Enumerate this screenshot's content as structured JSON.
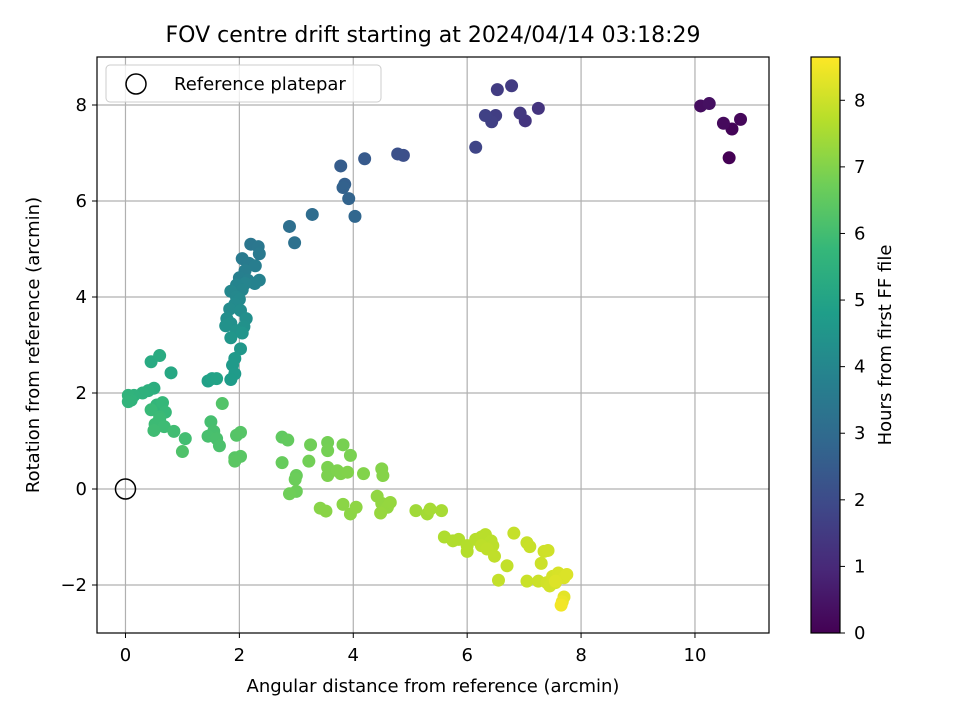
{
  "chart_data": {
    "type": "scatter",
    "title": "FOV centre drift starting at 2024/04/14 03:18:29",
    "xlabel": "Angular distance from reference (arcmin)",
    "ylabel": "Rotation from reference (arcmin)",
    "xlim": [
      -0.5,
      11.3
    ],
    "ylim": [
      -3.0,
      9.0
    ],
    "xticks": [
      0,
      2,
      4,
      6,
      8,
      10
    ],
    "yticks": [
      -2,
      0,
      2,
      4,
      6,
      8
    ],
    "xtick_labels": [
      "0",
      "2",
      "4",
      "6",
      "8",
      "10"
    ],
    "ytick_labels": [
      "−2",
      "0",
      "2",
      "4",
      "6",
      "8"
    ],
    "grid": true,
    "legend": {
      "placement": "top-left",
      "entries": [
        "Reference platepar"
      ]
    },
    "reference_point": {
      "x": 0,
      "y": 0,
      "label": "Reference platepar"
    },
    "colorbar": {
      "label": "Hours from first FF file",
      "range": [
        0,
        8.65
      ],
      "ticks": [
        0,
        1,
        2,
        3,
        4,
        5,
        6,
        7,
        8
      ],
      "tick_labels": [
        "0",
        "1",
        "2",
        "3",
        "4",
        "5",
        "6",
        "7",
        "8"
      ],
      "colormap": "viridis",
      "stops": [
        "#440154",
        "#482878",
        "#3e4989",
        "#31688e",
        "#26828e",
        "#1f9e89",
        "#35b779",
        "#6ece58",
        "#b5de2b",
        "#fde725"
      ]
    },
    "series": [
      {
        "points": [
          [
            10.6,
            6.9,
            0.0
          ],
          [
            10.65,
            7.5,
            0.08
          ],
          [
            10.8,
            7.7,
            0.15
          ],
          [
            10.5,
            7.62,
            0.22
          ],
          [
            10.1,
            7.98,
            0.3
          ],
          [
            10.25,
            8.03,
            0.36
          ],
          [
            7.25,
            7.93,
            1.3
          ],
          [
            7.02,
            7.67,
            1.35
          ],
          [
            6.93,
            7.83,
            1.42
          ],
          [
            6.78,
            8.4,
            1.5
          ],
          [
            6.53,
            8.32,
            1.55
          ],
          [
            6.5,
            7.78,
            1.6
          ],
          [
            6.43,
            7.65,
            1.65
          ],
          [
            6.32,
            7.78,
            1.7
          ],
          [
            6.15,
            7.12,
            1.82
          ],
          [
            4.88,
            6.95,
            2.1
          ],
          [
            4.78,
            6.98,
            2.15
          ],
          [
            4.2,
            6.88,
            2.45
          ],
          [
            3.78,
            6.73,
            2.55
          ],
          [
            3.85,
            6.35,
            2.65
          ],
          [
            3.82,
            6.28,
            2.7
          ],
          [
            3.92,
            6.05,
            2.75
          ],
          [
            4.03,
            5.68,
            2.85
          ],
          [
            3.28,
            5.72,
            3.05
          ],
          [
            2.88,
            5.47,
            3.15
          ],
          [
            2.97,
            5.13,
            3.2
          ],
          [
            2.2,
            5.1,
            3.4
          ],
          [
            2.33,
            5.05,
            3.45
          ],
          [
            2.35,
            4.9,
            3.5
          ],
          [
            2.05,
            4.8,
            3.55
          ],
          [
            2.17,
            4.7,
            3.6
          ],
          [
            2.28,
            4.65,
            3.65
          ],
          [
            2.1,
            4.55,
            3.7
          ],
          [
            2.0,
            4.4,
            3.75
          ],
          [
            2.15,
            4.35,
            3.78
          ],
          [
            2.35,
            4.35,
            3.82
          ],
          [
            2.27,
            4.28,
            3.86
          ],
          [
            2.1,
            4.28,
            3.9
          ],
          [
            1.95,
            4.25,
            3.93
          ],
          [
            2.05,
            4.15,
            3.96
          ],
          [
            1.85,
            4.12,
            4.0
          ],
          [
            1.95,
            4.0,
            4.05
          ],
          [
            2.0,
            3.95,
            4.08
          ],
          [
            1.92,
            3.85,
            4.12
          ],
          [
            1.83,
            3.75,
            4.16
          ],
          [
            2.02,
            3.72,
            4.2
          ],
          [
            1.78,
            3.55,
            4.25
          ],
          [
            2.12,
            3.55,
            4.28
          ],
          [
            1.85,
            3.45,
            4.32
          ],
          [
            2.08,
            3.38,
            4.36
          ],
          [
            1.76,
            3.4,
            4.4
          ],
          [
            1.95,
            3.3,
            4.44
          ],
          [
            2.05,
            3.25,
            4.48
          ],
          [
            1.85,
            3.15,
            4.52
          ],
          [
            2.02,
            2.92,
            4.58
          ],
          [
            1.92,
            2.72,
            4.62
          ],
          [
            1.88,
            2.58,
            4.66
          ],
          [
            1.92,
            2.4,
            4.7
          ],
          [
            1.85,
            2.28,
            4.74
          ],
          [
            1.45,
            2.25,
            4.9
          ],
          [
            1.52,
            2.3,
            4.95
          ],
          [
            1.6,
            2.3,
            5.0
          ],
          [
            0.8,
            2.42,
            5.15
          ],
          [
            0.45,
            2.65,
            5.25
          ],
          [
            0.6,
            2.78,
            5.3
          ],
          [
            0.5,
            2.1,
            5.4
          ],
          [
            0.4,
            2.05,
            5.45
          ],
          [
            0.3,
            2.0,
            5.5
          ],
          [
            0.15,
            1.95,
            5.55
          ],
          [
            0.05,
            1.95,
            5.58
          ],
          [
            0.1,
            1.85,
            5.6
          ],
          [
            0.05,
            1.82,
            5.63
          ],
          [
            0.55,
            1.75,
            5.7
          ],
          [
            0.65,
            1.8,
            5.75
          ],
          [
            0.7,
            1.6,
            5.8
          ],
          [
            0.45,
            1.65,
            5.83
          ],
          [
            0.6,
            1.5,
            5.86
          ],
          [
            0.6,
            1.45,
            5.88
          ],
          [
            0.52,
            1.35,
            5.9
          ],
          [
            0.68,
            1.3,
            5.92
          ],
          [
            0.5,
            1.22,
            5.95
          ],
          [
            0.85,
            1.2,
            5.97
          ],
          [
            1.05,
            1.05,
            6.0
          ],
          [
            1.5,
            1.4,
            6.05
          ],
          [
            1.55,
            1.2,
            6.08
          ],
          [
            1.45,
            1.1,
            6.1
          ],
          [
            1.6,
            1.05,
            6.12
          ],
          [
            1.65,
            0.9,
            6.15
          ],
          [
            1.0,
            0.78,
            6.2
          ],
          [
            1.7,
            1.78,
            6.25
          ],
          [
            1.95,
            1.12,
            6.3
          ],
          [
            2.02,
            1.18,
            6.32
          ],
          [
            1.92,
            0.65,
            6.35
          ],
          [
            2.02,
            0.68,
            6.38
          ],
          [
            1.92,
            0.58,
            6.4
          ],
          [
            2.75,
            1.08,
            6.5
          ],
          [
            2.85,
            1.02,
            6.55
          ],
          [
            2.75,
            0.55,
            6.6
          ],
          [
            3.0,
            0.28,
            6.65
          ],
          [
            2.98,
            0.2,
            6.68
          ],
          [
            3.0,
            -0.05,
            6.7
          ],
          [
            2.88,
            -0.1,
            6.72
          ],
          [
            3.25,
            0.92,
            6.75
          ],
          [
            3.22,
            0.58,
            6.78
          ],
          [
            3.55,
            0.97,
            6.8
          ],
          [
            3.55,
            0.8,
            6.82
          ],
          [
            3.82,
            0.92,
            6.85
          ],
          [
            3.95,
            0.7,
            6.88
          ],
          [
            3.55,
            0.45,
            6.9
          ],
          [
            3.55,
            0.28,
            6.92
          ],
          [
            3.72,
            0.38,
            6.94
          ],
          [
            3.78,
            0.32,
            6.96
          ],
          [
            3.9,
            0.35,
            6.98
          ],
          [
            4.18,
            0.32,
            7.0
          ],
          [
            4.5,
            0.42,
            7.02
          ],
          [
            4.52,
            0.28,
            7.04
          ],
          [
            3.42,
            -0.4,
            7.08
          ],
          [
            3.52,
            -0.46,
            7.1
          ],
          [
            3.82,
            -0.32,
            7.12
          ],
          [
            3.95,
            -0.52,
            7.14
          ],
          [
            4.05,
            -0.38,
            7.16
          ],
          [
            4.42,
            -0.15,
            7.2
          ],
          [
            4.5,
            -0.3,
            7.22
          ],
          [
            4.6,
            -0.38,
            7.24
          ],
          [
            4.65,
            -0.28,
            7.26
          ],
          [
            4.48,
            -0.5,
            7.28
          ],
          [
            5.1,
            -0.45,
            7.4
          ],
          [
            5.3,
            -0.52,
            7.45
          ],
          [
            5.35,
            -0.42,
            7.48
          ],
          [
            5.55,
            -0.45,
            7.5
          ],
          [
            5.6,
            -1.0,
            7.6
          ],
          [
            5.75,
            -1.08,
            7.62
          ],
          [
            5.85,
            -1.05,
            7.64
          ],
          [
            6.0,
            -1.18,
            7.66
          ],
          [
            6.0,
            -1.3,
            7.68
          ],
          [
            6.15,
            -1.05,
            7.7
          ],
          [
            6.25,
            -1.0,
            7.72
          ],
          [
            6.32,
            -0.95,
            7.74
          ],
          [
            6.42,
            -1.08,
            7.76
          ],
          [
            6.45,
            -1.18,
            7.78
          ],
          [
            6.25,
            -1.18,
            7.8
          ],
          [
            6.35,
            -1.25,
            7.82
          ],
          [
            6.48,
            -1.4,
            7.84
          ],
          [
            6.7,
            -1.6,
            7.86
          ],
          [
            6.55,
            -1.9,
            7.88
          ],
          [
            6.82,
            -0.92,
            7.9
          ],
          [
            7.05,
            -1.12,
            7.92
          ],
          [
            7.1,
            -1.2,
            7.94
          ],
          [
            7.05,
            -1.92,
            7.96
          ],
          [
            7.25,
            -1.92,
            7.98
          ],
          [
            7.3,
            -1.55,
            8.0
          ],
          [
            7.35,
            -1.3,
            8.02
          ],
          [
            7.42,
            -1.28,
            8.04
          ],
          [
            7.4,
            -1.95,
            8.06
          ],
          [
            7.45,
            -2.02,
            8.08
          ],
          [
            7.5,
            -1.82,
            8.1
          ],
          [
            7.55,
            -1.95,
            8.12
          ],
          [
            7.6,
            -1.75,
            8.14
          ],
          [
            7.65,
            -1.8,
            8.16
          ],
          [
            7.7,
            -1.85,
            8.18
          ],
          [
            7.75,
            -1.78,
            8.2
          ],
          [
            7.55,
            -1.92,
            8.22
          ],
          [
            7.7,
            -2.25,
            8.3
          ],
          [
            7.67,
            -2.35,
            8.4
          ],
          [
            7.65,
            -2.42,
            8.5
          ]
        ]
      }
    ]
  }
}
